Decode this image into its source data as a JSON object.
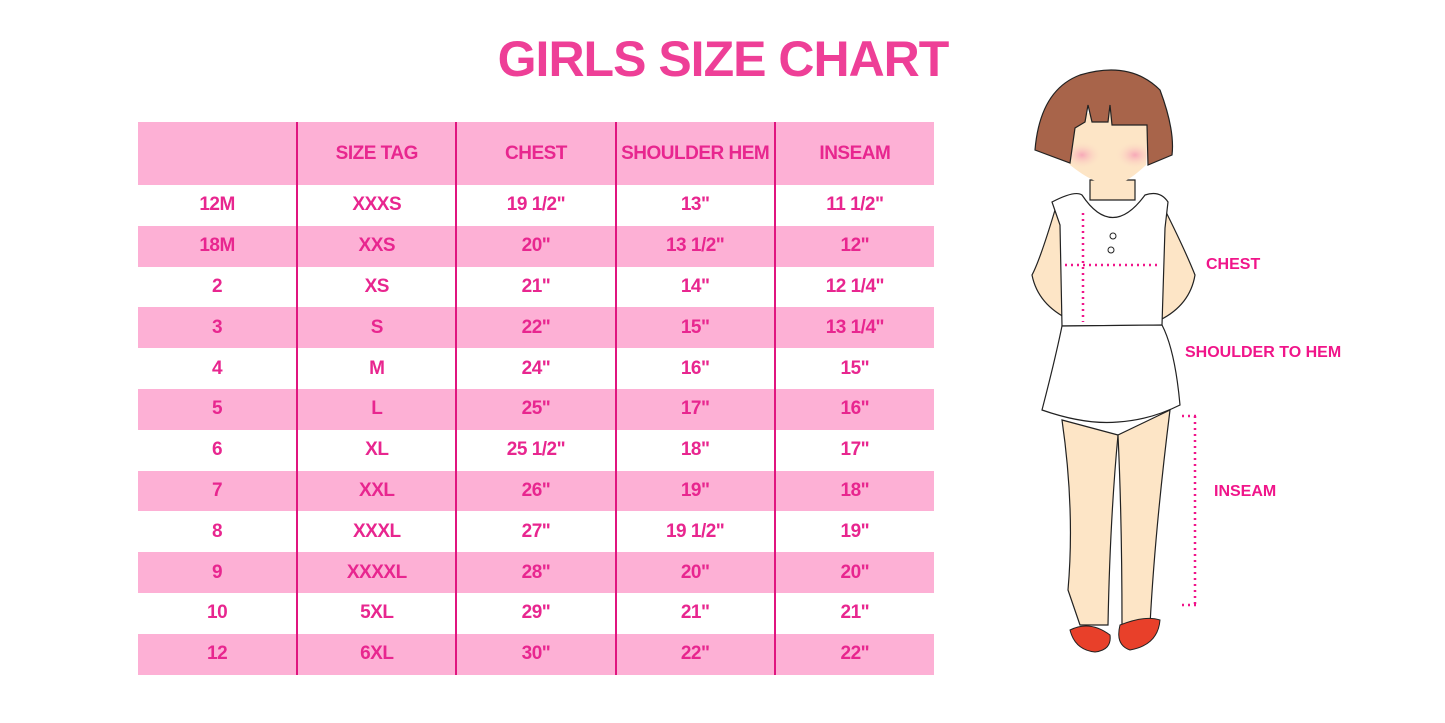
{
  "title": "GIRLS SIZE CHART",
  "table": {
    "headers": [
      "",
      "SIZE TAG",
      "CHEST",
      "SHOULDER HEM",
      "INSEAM"
    ],
    "rows": [
      [
        "12M",
        "XXXS",
        "19 1/2\"",
        "13\"",
        "11 1/2\""
      ],
      [
        "18M",
        "XXS",
        "20\"",
        "13 1/2\"",
        "12\""
      ],
      [
        "2",
        "XS",
        "21\"",
        "14\"",
        "12 1/4\""
      ],
      [
        "3",
        "S",
        "22\"",
        "15\"",
        "13 1/4\""
      ],
      [
        "4",
        "M",
        "24\"",
        "16\"",
        "15\""
      ],
      [
        "5",
        "L",
        "25\"",
        "17\"",
        "16\""
      ],
      [
        "6",
        "XL",
        "25 1/2\"",
        "18\"",
        "17\""
      ],
      [
        "7",
        "XXL",
        "26\"",
        "19\"",
        "18\""
      ],
      [
        "8",
        "XXXL",
        "27\"",
        "19 1/2\"",
        "19\""
      ],
      [
        "9",
        "XXXXL",
        "28\"",
        "20\"",
        "20\""
      ],
      [
        "10",
        "5XL",
        "29\"",
        "21\"",
        "21\""
      ],
      [
        "12",
        "6XL",
        "30\"",
        "22\"",
        "22\""
      ]
    ]
  },
  "figure": {
    "labels": {
      "chest": "CHEST",
      "shoulder": "SHOULDER TO HEM",
      "inseam": "INSEAM"
    }
  },
  "colors": {
    "accent": "#e8268f",
    "stripe": "#fdb0d5",
    "divider": "#e0157f"
  }
}
